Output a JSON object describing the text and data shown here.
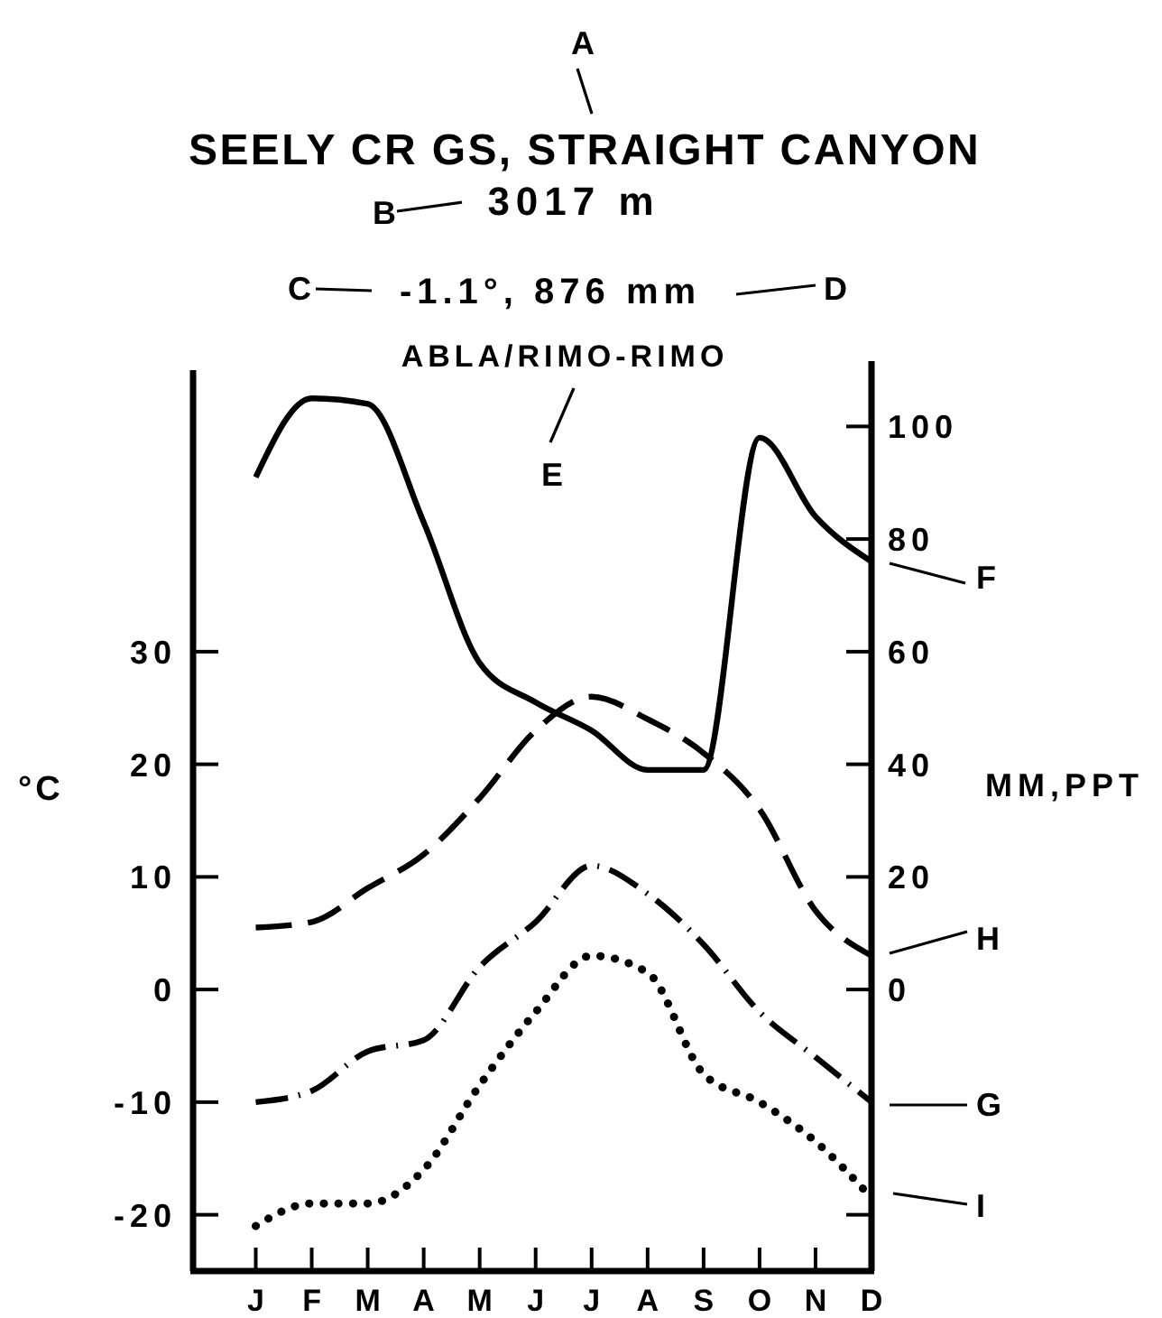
{
  "chart_data": {
    "type": "line",
    "title": "SEELY CR GS, STRAIGHT CANYON",
    "subtitle": "3017 m",
    "ylabel": "°C",
    "y2label": "MM,PPT",
    "annotations": [
      "-1.1°, 876 mm",
      "ABLA/RIMO-RIMO",
      "A",
      "B",
      "C",
      "D",
      "E",
      "F",
      "G",
      "H",
      "I"
    ],
    "categories": [
      "J",
      "F",
      "M",
      "A",
      "M",
      "J",
      "J",
      "A",
      "S",
      "O",
      "N",
      "D"
    ],
    "series": [
      {
        "color": "#000000",
        "axis": "y2",
        "line_style": "solid",
        "values": [
          91,
          105,
          104,
          83,
          58,
          51,
          46,
          39,
          39,
          98,
          84,
          76
        ]
      },
      {
        "color": "#000000",
        "line_style": "dashed",
        "values": [
          5.5,
          6,
          9,
          12,
          17,
          23,
          26,
          24,
          21,
          16,
          7,
          3
        ]
      },
      {
        "color": "#000000",
        "line_style": "dashdot",
        "values": [
          -10,
          -9,
          -5.5,
          -4.5,
          2,
          6,
          11,
          8.5,
          4,
          -2,
          -6,
          -10
        ]
      },
      {
        "color": "#000000",
        "line_style": "dotted",
        "values": [
          -21,
          -19,
          -19,
          -16,
          -8.5,
          -2,
          3,
          1.5,
          -7.5,
          -10,
          -13.5,
          -18.5
        ]
      }
    ],
    "ylim": [
      -25,
      55
    ],
    "yticks": [
      -20,
      -10,
      0,
      10,
      20,
      30
    ],
    "y2lim": [
      -50,
      110
    ],
    "y2ticks": [
      {
        "value": -40,
        "label": null
      },
      0,
      20,
      40,
      60,
      80,
      100
    ]
  }
}
